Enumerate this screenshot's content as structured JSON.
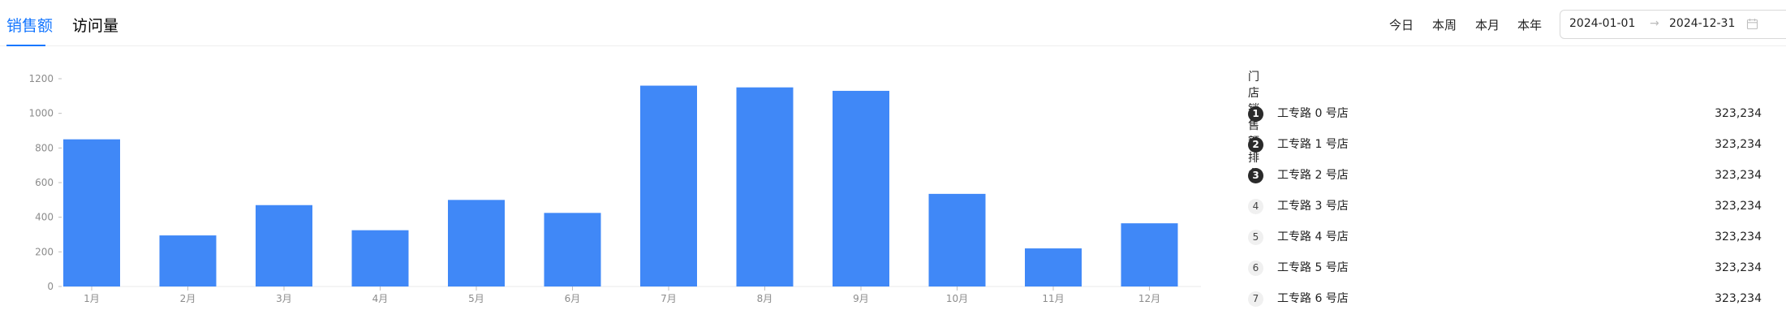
{
  "tabs": [
    {
      "label": "销售额",
      "active": true
    },
    {
      "label": "访问量",
      "active": false
    }
  ],
  "range_options": [
    "今日",
    "本周",
    "本月",
    "本年"
  ],
  "date_range": {
    "start": "2024-01-01",
    "end": "2024-12-31",
    "separator": "→"
  },
  "colors": {
    "accent": "#1677ff",
    "bar": "#4088f7",
    "axis_text": "#8c8c8c"
  },
  "chart_data": {
    "type": "bar",
    "categories": [
      "1月",
      "2月",
      "3月",
      "4月",
      "5月",
      "6月",
      "7月",
      "8月",
      "9月",
      "10月",
      "11月",
      "12月"
    ],
    "values": [
      850,
      295,
      470,
      325,
      500,
      425,
      1160,
      1150,
      1130,
      535,
      220,
      365
    ],
    "yticks": [
      0,
      200,
      400,
      600,
      800,
      1000,
      1200
    ],
    "ylim": [
      0,
      1200
    ],
    "grid": false,
    "title": "",
    "xlabel": "",
    "ylabel": ""
  },
  "ranking": {
    "title": "门店销售额排名",
    "items": [
      {
        "rank": "1",
        "name": "工专路 0 号店",
        "value": "323,234"
      },
      {
        "rank": "2",
        "name": "工专路 1 号店",
        "value": "323,234"
      },
      {
        "rank": "3",
        "name": "工专路 2 号店",
        "value": "323,234"
      },
      {
        "rank": "4",
        "name": "工专路 3 号店",
        "value": "323,234"
      },
      {
        "rank": "5",
        "name": "工专路 4 号店",
        "value": "323,234"
      },
      {
        "rank": "6",
        "name": "工专路 5 号店",
        "value": "323,234"
      },
      {
        "rank": "7",
        "name": "工专路 6 号店",
        "value": "323,234"
      }
    ]
  }
}
